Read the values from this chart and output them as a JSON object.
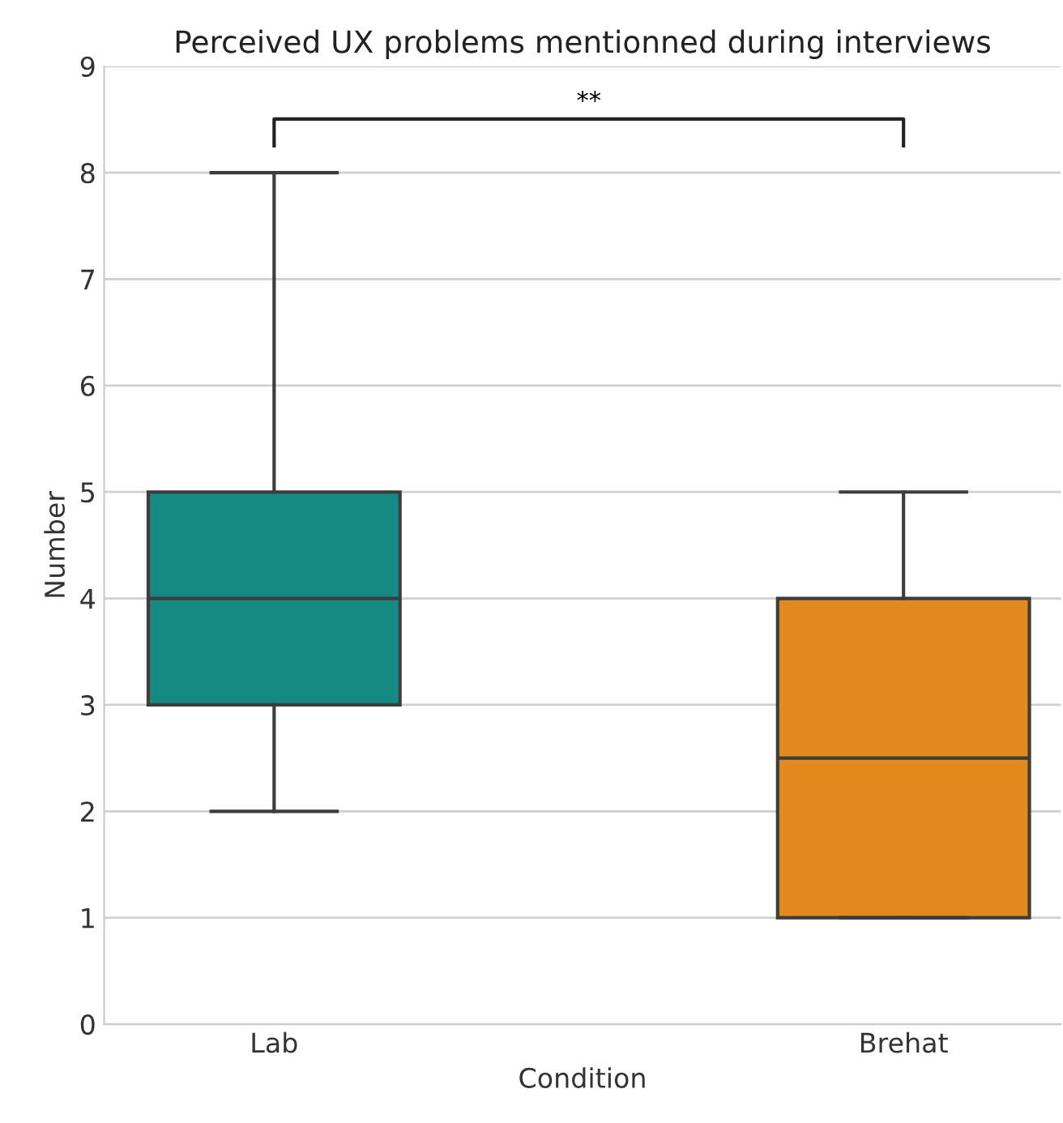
{
  "chart_data": {
    "type": "box",
    "title": "Perceived UX problems mentionned during interviews",
    "xlabel": "Condition",
    "ylabel": "Number",
    "categories": [
      "Lab",
      "Brehat"
    ],
    "colors": [
      "#138a84",
      "#e38a1f"
    ],
    "boxes": [
      {
        "low": 2,
        "q1": 3,
        "median": 4,
        "q3": 5,
        "high": 8
      },
      {
        "low": 1,
        "q1": 1,
        "median": 2.5,
        "q3": 4,
        "high": 5
      }
    ],
    "ylim": [
      0,
      9
    ],
    "yticks": [
      0,
      1,
      2,
      3,
      4,
      5,
      6,
      7,
      8,
      9
    ],
    "grid": "y",
    "legend": false,
    "annotations": [
      "**"
    ]
  }
}
